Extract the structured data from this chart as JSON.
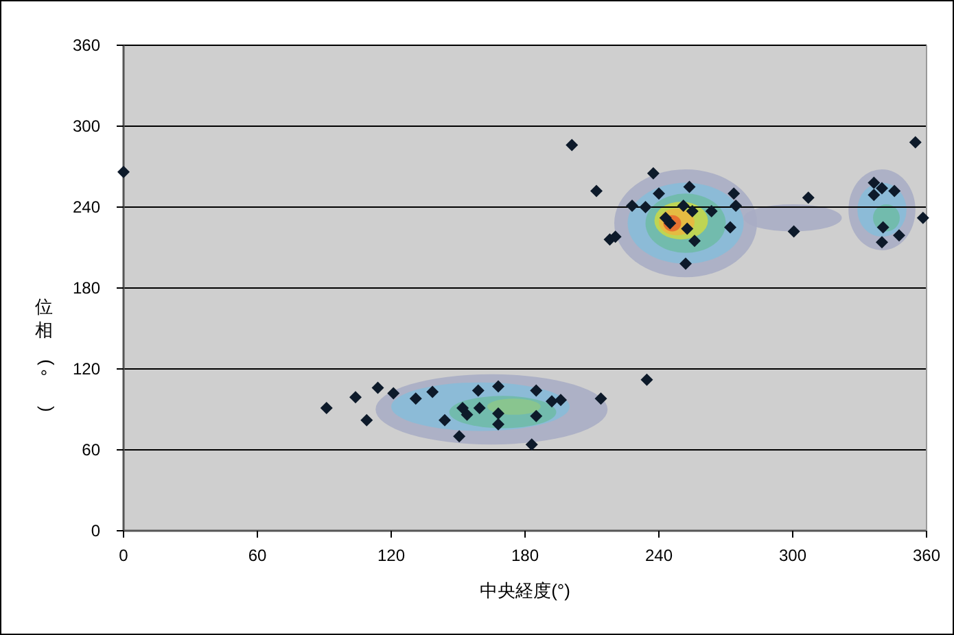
{
  "chart_data": {
    "type": "scatter",
    "xlabel": "中央経度(°)",
    "ylabel": "位相(°)",
    "x": [
      0,
      91,
      104,
      109,
      114,
      121,
      131,
      138.5,
      144,
      150.5,
      152,
      154,
      159,
      159.6,
      168,
      168,
      168,
      185,
      185,
      183,
      192,
      196,
      214,
      201,
      212,
      218,
      220.5,
      228,
      234,
      237.5,
      240,
      234.6,
      253.7,
      273.6,
      274.5,
      272,
      252,
      251,
      255,
      263.6,
      252.7,
      256,
      245,
      243,
      300.5,
      307,
      355,
      358.4,
      336.4,
      340,
      336.4,
      345.6,
      340.5,
      347.7,
      340
    ],
    "series": [
      {
        "color": "#0d1a2a",
        "values": [
          266,
          91,
          99,
          82,
          106,
          102,
          98,
          103,
          82,
          70,
          91,
          86,
          104,
          91,
          107,
          87,
          79,
          104,
          85,
          64,
          96,
          97,
          98,
          286,
          252,
          216,
          218,
          241,
          240,
          265,
          250,
          112,
          255,
          250,
          241,
          225,
          198,
          241,
          237,
          237,
          224,
          215,
          228,
          232,
          222,
          247,
          288,
          232,
          258,
          254,
          249,
          252,
          225,
          219,
          214
        ]
      }
    ],
    "xlim": [
      0,
      360
    ],
    "ylim": [
      0,
      360
    ],
    "xticks": [
      0,
      60,
      120,
      180,
      240,
      300,
      360
    ],
    "yticks": [
      0,
      60,
      120,
      180,
      240,
      300,
      360
    ],
    "grid": "y",
    "marker": "diamond"
  }
}
